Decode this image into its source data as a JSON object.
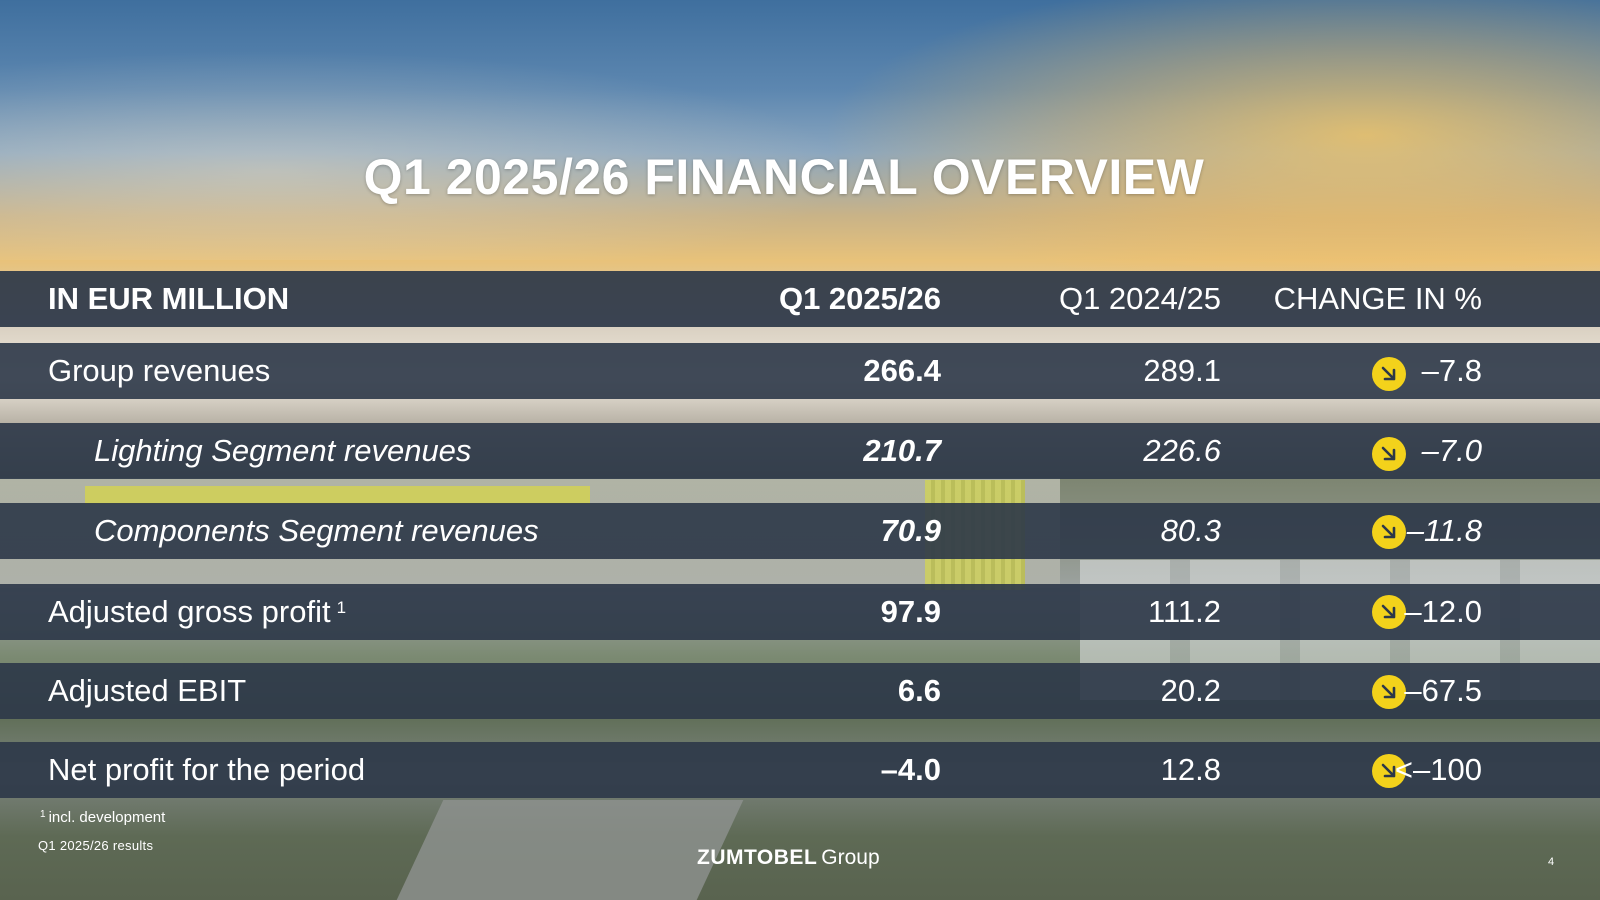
{
  "title": "Q1 2025/26 FINANCIAL OVERVIEW",
  "table": {
    "headers": {
      "label": "IN EUR MILLION",
      "current": "Q1 2025/26",
      "previous": "Q1 2024/25",
      "change": "CHANGE IN %"
    },
    "rows": [
      {
        "label": "Group revenues",
        "current": "266.4",
        "previous": "289.1",
        "change": "–7.8",
        "trend_icon": "arrow-down-right-icon"
      },
      {
        "label": "Lighting Segment revenues",
        "current": "210.7",
        "previous": "226.6",
        "change": "–7.0",
        "trend_icon": "arrow-down-right-icon"
      },
      {
        "label": "Components Segment revenues",
        "current": "70.9",
        "previous": "80.3",
        "change": "–11.8",
        "trend_icon": "arrow-down-right-icon"
      },
      {
        "label": "Adjusted gross profit",
        "footnote_ref": "1",
        "current": "97.9",
        "previous": "111.2",
        "change": "–12.0",
        "trend_icon": "arrow-down-right-icon"
      },
      {
        "label": "Adjusted EBIT",
        "current": "6.6",
        "previous": "20.2",
        "change": "–67.5",
        "trend_icon": "arrow-down-right-icon"
      },
      {
        "label": "Net profit for the period",
        "current": "–4.0",
        "previous": "12.8",
        "change": "<–100",
        "trend_icon": "arrow-down-right-icon"
      }
    ]
  },
  "footnote": {
    "marker": "1",
    "text": "incl. development"
  },
  "footer": {
    "presentation_name": "Q1 2025/26 results",
    "logo_bold": "ZUMTOBEL",
    "logo_light": "Group",
    "page_number": "4"
  },
  "colors": {
    "row_background": "#2c3748",
    "trend_icon": "#f3d21b",
    "text": "#ffffff"
  }
}
